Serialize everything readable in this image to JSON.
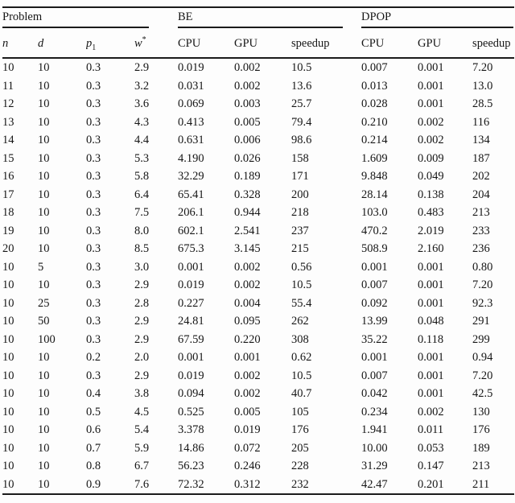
{
  "table": {
    "groups": [
      {
        "label": "Problem"
      },
      {
        "label": "BE"
      },
      {
        "label": "DPOP"
      }
    ],
    "subheaders": {
      "n": "n",
      "d": "d",
      "p_base": "p",
      "p_sub": "1",
      "w_base": "w",
      "w_sup": "*",
      "be_cpu": "CPU",
      "be_gpu": "GPU",
      "be_speedup": "speedup",
      "dpop_cpu": "CPU",
      "dpop_gpu": "GPU",
      "dpop_speedup": "speedup"
    },
    "rows": [
      [
        "10",
        "10",
        "0.3",
        "2.9",
        "0.019",
        "0.002",
        "10.5",
        "0.007",
        "0.001",
        "7.20"
      ],
      [
        "11",
        "10",
        "0.3",
        "3.2",
        "0.031",
        "0.002",
        "13.6",
        "0.013",
        "0.001",
        "13.0"
      ],
      [
        "12",
        "10",
        "0.3",
        "3.6",
        "0.069",
        "0.003",
        "25.7",
        "0.028",
        "0.001",
        "28.5"
      ],
      [
        "13",
        "10",
        "0.3",
        "4.3",
        "0.413",
        "0.005",
        "79.4",
        "0.210",
        "0.002",
        "116"
      ],
      [
        "14",
        "10",
        "0.3",
        "4.4",
        "0.631",
        "0.006",
        "98.6",
        "0.214",
        "0.002",
        "134"
      ],
      [
        "15",
        "10",
        "0.3",
        "5.3",
        "4.190",
        "0.026",
        "158",
        "1.609",
        "0.009",
        "187"
      ],
      [
        "16",
        "10",
        "0.3",
        "5.8",
        "32.29",
        "0.189",
        "171",
        "9.848",
        "0.049",
        "202"
      ],
      [
        "17",
        "10",
        "0.3",
        "6.4",
        "65.41",
        "0.328",
        "200",
        "28.14",
        "0.138",
        "204"
      ],
      [
        "18",
        "10",
        "0.3",
        "7.5",
        "206.1",
        "0.944",
        "218",
        "103.0",
        "0.483",
        "213"
      ],
      [
        "19",
        "10",
        "0.3",
        "8.0",
        "602.1",
        "2.541",
        "237",
        "470.2",
        "2.019",
        "233"
      ],
      [
        "20",
        "10",
        "0.3",
        "8.5",
        "675.3",
        "3.145",
        "215",
        "508.9",
        "2.160",
        "236"
      ],
      [
        "10",
        "5",
        "0.3",
        "3.0",
        "0.001",
        "0.002",
        "0.56",
        "0.001",
        "0.001",
        "0.80"
      ],
      [
        "10",
        "10",
        "0.3",
        "2.9",
        "0.019",
        "0.002",
        "10.5",
        "0.007",
        "0.001",
        "7.20"
      ],
      [
        "10",
        "25",
        "0.3",
        "2.8",
        "0.227",
        "0.004",
        "55.4",
        "0.092",
        "0.001",
        "92.3"
      ],
      [
        "10",
        "50",
        "0.3",
        "2.9",
        "24.81",
        "0.095",
        "262",
        "13.99",
        "0.048",
        "291"
      ],
      [
        "10",
        "100",
        "0.3",
        "2.9",
        "67.59",
        "0.220",
        "308",
        "35.22",
        "0.118",
        "299"
      ],
      [
        "10",
        "10",
        "0.2",
        "2.0",
        "0.001",
        "0.001",
        "0.62",
        "0.001",
        "0.001",
        "0.94"
      ],
      [
        "10",
        "10",
        "0.3",
        "2.9",
        "0.019",
        "0.002",
        "10.5",
        "0.007",
        "0.001",
        "7.20"
      ],
      [
        "10",
        "10",
        "0.4",
        "3.8",
        "0.094",
        "0.002",
        "40.7",
        "0.042",
        "0.001",
        "42.5"
      ],
      [
        "10",
        "10",
        "0.5",
        "4.5",
        "0.525",
        "0.005",
        "105",
        "0.234",
        "0.002",
        "130"
      ],
      [
        "10",
        "10",
        "0.6",
        "5.4",
        "3.378",
        "0.019",
        "176",
        "1.941",
        "0.011",
        "176"
      ],
      [
        "10",
        "10",
        "0.7",
        "5.9",
        "14.86",
        "0.072",
        "205",
        "10.00",
        "0.053",
        "189"
      ],
      [
        "10",
        "10",
        "0.8",
        "6.7",
        "56.23",
        "0.246",
        "228",
        "31.29",
        "0.147",
        "213"
      ],
      [
        "10",
        "10",
        "0.9",
        "7.6",
        "72.32",
        "0.312",
        "232",
        "42.47",
        "0.201",
        "211"
      ]
    ]
  }
}
